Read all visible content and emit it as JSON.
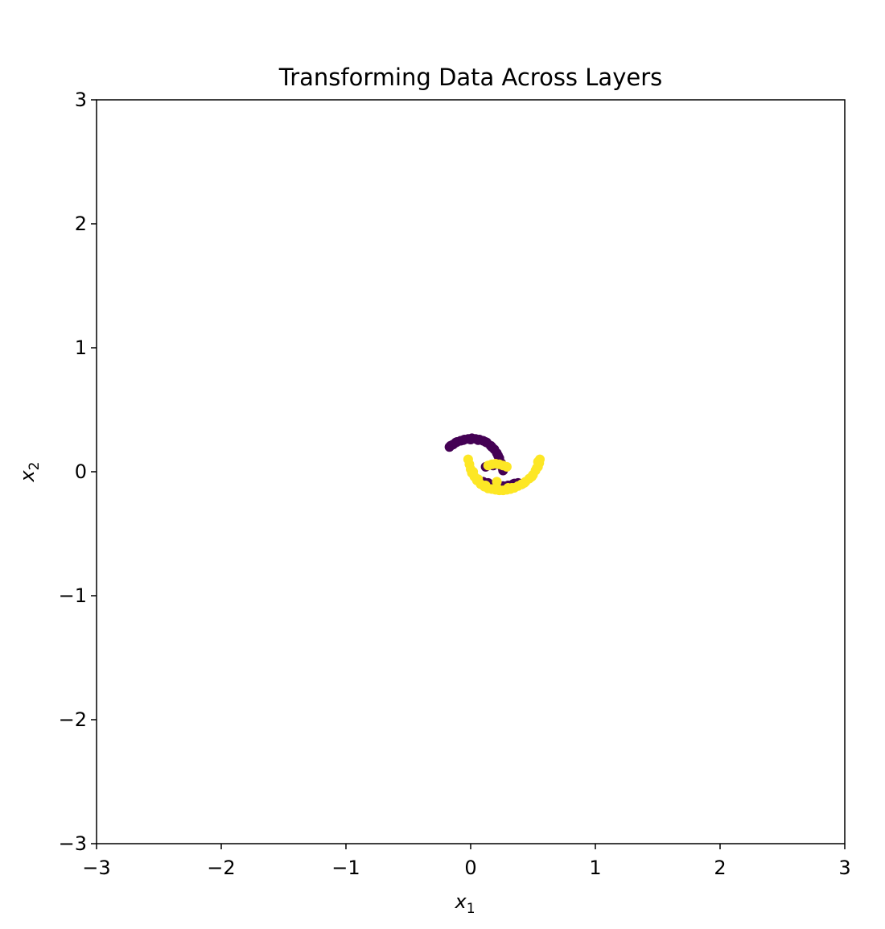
{
  "chart_data": {
    "type": "scatter",
    "title": "Transforming Data Across Layers",
    "xlabel": {
      "base": "x",
      "sub": "1"
    },
    "ylabel": {
      "base": "x",
      "sub": "2"
    },
    "xlim": [
      -3,
      3
    ],
    "ylim": [
      -3,
      3
    ],
    "xticks": [
      -3,
      -2,
      -1,
      0,
      1,
      2,
      3
    ],
    "yticks": [
      -3,
      -2,
      -1,
      0,
      1,
      2,
      3
    ],
    "xtick_labels": [
      "−3",
      "−2",
      "−1",
      "0",
      "1",
      "2",
      "3"
    ],
    "ytick_labels": [
      "−3",
      "−2",
      "−1",
      "0",
      "1",
      "2",
      "3"
    ],
    "grid": false,
    "colors": {
      "class_0": "#440154",
      "class_1": "#fde725"
    },
    "series": [
      {
        "class": 0,
        "color": "#440154",
        "points": [
          [
            -0.17,
            0.2
          ],
          [
            -0.14,
            0.22
          ],
          [
            -0.11,
            0.24
          ],
          [
            -0.08,
            0.25
          ],
          [
            -0.05,
            0.26
          ],
          [
            -0.02,
            0.265
          ],
          [
            0.01,
            0.27
          ],
          [
            0.04,
            0.265
          ],
          [
            0.07,
            0.26
          ],
          [
            0.1,
            0.25
          ],
          [
            0.13,
            0.235
          ],
          [
            0.16,
            0.21
          ],
          [
            0.19,
            0.18
          ],
          [
            0.21,
            0.15
          ],
          [
            0.23,
            0.11
          ],
          [
            0.245,
            0.07
          ],
          [
            0.255,
            0.03
          ],
          [
            0.26,
            0.01
          ],
          [
            -0.16,
            0.21
          ],
          [
            -0.12,
            0.235
          ],
          [
            -0.06,
            0.255
          ],
          [
            0.0,
            0.26
          ],
          [
            0.06,
            0.255
          ],
          [
            0.12,
            0.24
          ],
          [
            0.17,
            0.2
          ],
          [
            0.22,
            0.13
          ],
          [
            0.25,
            0.05
          ],
          [
            0.1,
            -0.08
          ],
          [
            0.14,
            -0.09
          ],
          [
            0.18,
            -0.11
          ],
          [
            0.22,
            -0.12
          ],
          [
            0.26,
            -0.115
          ],
          [
            0.3,
            -0.11
          ],
          [
            0.34,
            -0.1
          ],
          [
            0.38,
            -0.09
          ],
          [
            0.41,
            -0.1
          ],
          [
            0.2,
            -0.1
          ],
          [
            0.28,
            -0.12
          ],
          [
            0.35,
            -0.095
          ],
          [
            0.12,
            0.04
          ],
          [
            0.18,
            0.05
          ],
          [
            0.25,
            0.045
          ]
        ]
      },
      {
        "class": 1,
        "color": "#fde725",
        "points": [
          [
            -0.02,
            0.1
          ],
          [
            -0.01,
            0.06
          ],
          [
            0.0,
            0.02
          ],
          [
            0.01,
            -0.01
          ],
          [
            0.03,
            -0.04
          ],
          [
            0.05,
            -0.07
          ],
          [
            0.08,
            -0.1
          ],
          [
            0.11,
            -0.12
          ],
          [
            0.14,
            -0.135
          ],
          [
            0.17,
            -0.14
          ],
          [
            0.2,
            -0.145
          ],
          [
            0.23,
            -0.15
          ],
          [
            0.26,
            -0.15
          ],
          [
            0.29,
            -0.145
          ],
          [
            0.32,
            -0.14
          ],
          [
            0.35,
            -0.13
          ],
          [
            0.38,
            -0.115
          ],
          [
            0.41,
            -0.1
          ],
          [
            0.44,
            -0.08
          ],
          [
            0.47,
            -0.055
          ],
          [
            0.5,
            -0.025
          ],
          [
            0.52,
            0.01
          ],
          [
            0.54,
            0.04
          ],
          [
            0.55,
            0.07
          ],
          [
            0.555,
            0.1
          ],
          [
            0.02,
            0.0
          ],
          [
            0.06,
            -0.06
          ],
          [
            0.12,
            -0.11
          ],
          [
            0.22,
            -0.14
          ],
          [
            0.33,
            -0.13
          ],
          [
            0.43,
            -0.09
          ],
          [
            0.49,
            -0.04
          ],
          [
            0.53,
            0.03
          ],
          [
            0.54,
            0.08
          ],
          [
            0.14,
            0.05
          ],
          [
            0.17,
            0.06
          ],
          [
            0.2,
            0.065
          ],
          [
            0.23,
            0.06
          ],
          [
            0.26,
            0.05
          ],
          [
            0.29,
            0.04
          ],
          [
            0.3,
            -0.13
          ],
          [
            0.21,
            -0.08
          ]
        ]
      }
    ]
  }
}
